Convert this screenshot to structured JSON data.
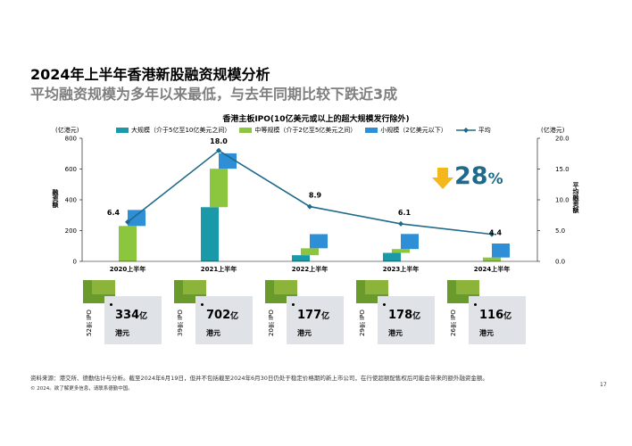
{
  "title": "2024年上半年香港新股融资规模分析",
  "subtitle": "平均融资规模为多年以来最低，与去年同期比较下跌近3成",
  "chart_data": {
    "type": "bar",
    "title": "香港主板IPO(10亿美元或以上的超大规模发行除外)",
    "categories": [
      "2020上半年",
      "2021上半年",
      "2022上半年",
      "2023上半年",
      "2024上半年"
    ],
    "series": [
      {
        "name": "大规模（介于5亿至10亿美元之间）",
        "color": "#1a9aa8",
        "values": [
          0,
          352,
          40,
          55,
          0
        ]
      },
      {
        "name": "中等规模（介于2亿至5亿美元之间）",
        "color": "#8cc63f",
        "values": [
          230,
          250,
          45,
          25,
          25
        ]
      },
      {
        "name": "小规模（2亿美元以下）",
        "color": "#2e8fd6",
        "values": [
          104,
          100,
          92,
          98,
          91
        ]
      }
    ],
    "line": {
      "name": "平均",
      "color": "#1f6a8a",
      "values": [
        6.4,
        18.0,
        8.9,
        6.1,
        4.4
      ],
      "labels": [
        "6.4",
        "18.0",
        "8.9",
        "6.1",
        "4.4"
      ]
    },
    "ylabel_left": "融资额",
    "ylabel_right": "平均融资额",
    "unit_left": "(亿港元)",
    "unit_right": "(亿港元)",
    "ylim_left": [
      0,
      800
    ],
    "yticks_left": [
      "0",
      "200",
      "400",
      "600",
      "800"
    ],
    "ylim_right": [
      0,
      20
    ],
    "yticks_right": [
      "0.0",
      "5.0",
      "10.0",
      "15.0",
      "20.0"
    ],
    "grid": false,
    "legend_position": "top"
  },
  "callout": {
    "value": "28",
    "unit": "%",
    "arrow_color": "#f5b81c",
    "text_color": "#1f6a8a"
  },
  "cards": [
    {
      "count": "52宗 IPO",
      "amount": "334",
      "amount_unit": "亿",
      "currency": "港元"
    },
    {
      "count": "39宗 IPO",
      "amount": "702",
      "amount_unit": "亿",
      "currency": "港元"
    },
    {
      "count": "20宗 IPO",
      "amount": "177",
      "amount_unit": "亿",
      "currency": "港元"
    },
    {
      "count": "29宗 IPO",
      "amount": "178",
      "amount_unit": "亿",
      "currency": "港元"
    },
    {
      "count": "26宗 IPO",
      "amount": "116",
      "amount_unit": "亿",
      "currency": "港元"
    }
  ],
  "source": "资料来源：港交所、德勤估计与分析。截至2024年6月19日，但并不包括截至2024年6月30日仍处于稳定价格期的新上市公司，在行使超额配售权后可能会带来的额外融资金额。",
  "copyright": "© 2024。欲了解更多信息，请联系德勤中国。",
  "page_number": "17"
}
